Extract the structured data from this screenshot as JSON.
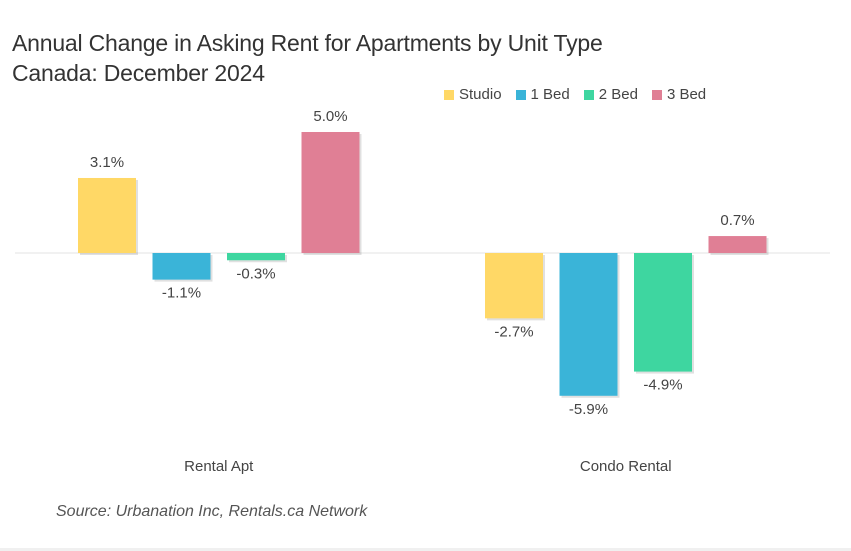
{
  "title_line1": "Annual Change in Asking Rent for Apartments by Unit Type",
  "title_line2": "Canada: December 2024",
  "source": "Source: Urbanation Inc, Rentals.ca Network",
  "chart_data": {
    "type": "bar",
    "categories": [
      "Rental Apt",
      "Condo Rental"
    ],
    "series": [
      {
        "name": "Studio",
        "color": "#FFD866",
        "values": [
          3.1,
          -2.7
        ],
        "labels": [
          "3.1%",
          "-2.7%"
        ]
      },
      {
        "name": "1 Bed",
        "color": "#3AB4D8",
        "values": [
          -1.1,
          -5.9
        ],
        "labels": [
          "-1.1%",
          "-5.9%"
        ]
      },
      {
        "name": "2 Bed",
        "color": "#3ED6A0",
        "values": [
          -0.3,
          -4.9
        ],
        "labels": [
          "-0.3%",
          "-4.9%"
        ]
      },
      {
        "name": "3 Bed",
        "color": "#E07F95",
        "values": [
          5.0,
          0.7
        ],
        "labels": [
          "5.0%",
          "0.7%"
        ]
      }
    ],
    "unit": "%",
    "legend_position": "top-right",
    "grid": false
  }
}
